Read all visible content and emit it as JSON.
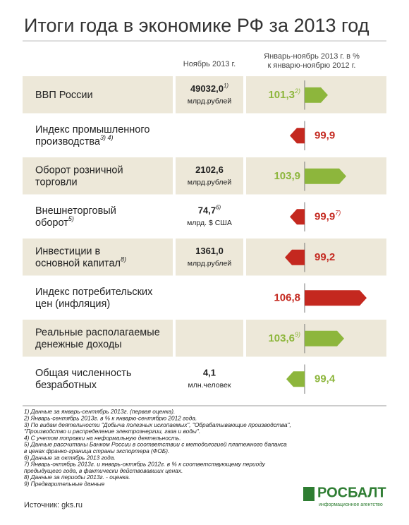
{
  "header": {
    "title": "Итоги года в экономике РФ за 2013 год",
    "col_value": "Ноябрь 2013 г.",
    "col_index": [
      "Январь-ноябрь 2013 г. в %",
      "к январю-ноябрю  2012 г."
    ]
  },
  "rows": [
    {
      "label": [
        "ВВП России"
      ],
      "value": "49032,0",
      "value_note": "1)",
      "unit": "млрд.рублей",
      "index": 101.3,
      "index_label": "101,3",
      "index_note": "2)",
      "arrow_color": "#8db63c",
      "shaded": true
    },
    {
      "label": [
        "Индекс промышленного",
        "производства"
      ],
      "label_note": "3) 4)",
      "index": 99.9,
      "index_label": "99,9",
      "arrow_color": "#c4281f",
      "shaded": false
    },
    {
      "label": [
        "Оборот розничной",
        "торговли"
      ],
      "value": "2102,6",
      "unit": "млрд.рублей",
      "index": 103.9,
      "index_label": "103,9",
      "arrow_color": "#8db63c",
      "shaded": true
    },
    {
      "label": [
        "Внешнеторговый",
        "оборот"
      ],
      "label_note": "5)",
      "value": "74,7",
      "value_note": "6)",
      "unit": "млрд. $ США",
      "index": 99.9,
      "index_label": "99,9",
      "index_note": "7)",
      "arrow_color": "#c4281f",
      "shaded": false
    },
    {
      "label": [
        "Инвестиции в",
        "основной капитал"
      ],
      "label_note": "8)",
      "value": "1361,0",
      "unit": "млрд.рублей",
      "index": 99.2,
      "index_label": "99,2",
      "arrow_color": "#c4281f",
      "shaded": true
    },
    {
      "label": [
        "Индекс потребительских",
        "цен (инфляция)"
      ],
      "index": 106.8,
      "index_label": "106,8",
      "arrow_color": "#c4281f",
      "shaded": false
    },
    {
      "label": [
        "Реальные располагаемые",
        "денежные доходы"
      ],
      "index": 103.6,
      "index_label": "103,6",
      "index_note": "9)",
      "arrow_color": "#8db63c",
      "shaded": true
    },
    {
      "label": [
        "Общая численность",
        "безработных"
      ],
      "value": "4,1",
      "unit": "млн.человек",
      "index": 99.4,
      "index_label": "99,4",
      "arrow_color": "#8db63c",
      "shaded": false
    }
  ],
  "footnotes": [
    "1) Данные за январь-сентябрь 2013г. (первая оценка).",
    "2) Январь-сентябрь 2013г. в % к январю-сентябрю 2012 года.",
    "3) По видам деятельности \"Добыча полезных ископаемых\", \"Обрабатывающие производства\",",
    "\"Производство и распределение электроэнергии, газа и воды\".",
    "4) С учетом поправки на неформальную деятельность.",
    "5) Данные рассчитаны Банком России в соответствии с методологией платежного баланса",
    "в ценах франко-граница страны экспортера (ФОБ).",
    "6) Данные за октябрь 2013 года.",
    "7) Январь-октябрь 2013г. и январь-октябрь 2012г. в % к соответствующему периоду",
    "предыдущего года, в фактически действовавших ценах.",
    "8) Данные за периоды 2013г. - оценка.",
    "9) Предварительные данные"
  ],
  "source": "Источник: gks.ru",
  "logo": {
    "name": "РОСБАЛТ",
    "tagline": "информационное агентство"
  }
}
